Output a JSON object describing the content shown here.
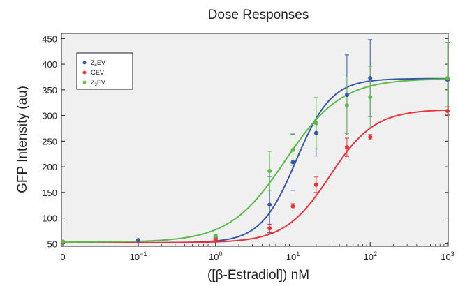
{
  "chart_data": {
    "type": "scatter",
    "title": "Dose Responses",
    "xlabel": "([β-Estradiol]) nM",
    "ylabel": "GFP Intensity (au)",
    "xscale": "log",
    "ylim": [
      45,
      460
    ],
    "yticks": [
      50,
      100,
      150,
      200,
      250,
      300,
      350,
      400,
      450
    ],
    "xticks": [
      {
        "value": 0,
        "base": "0",
        "exp": ""
      },
      {
        "value": 0.1,
        "base": "10",
        "exp": "−1"
      },
      {
        "value": 1,
        "base": "10",
        "exp": "0"
      },
      {
        "value": 10,
        "base": "10",
        "exp": "1"
      },
      {
        "value": 100,
        "base": "10",
        "exp": "2"
      },
      {
        "value": 1000,
        "base": "10",
        "exp": "3"
      }
    ],
    "grid": false,
    "legend_position": "top-left",
    "background": "#f0f0f0",
    "series": [
      {
        "name_main": "Z",
        "name_sub": "4",
        "name_tail": "EV",
        "color": "#3557a6",
        "x": [
          0,
          0.1,
          1,
          5,
          10,
          20,
          50,
          100,
          1000
        ],
        "y": [
          53,
          57,
          60,
          126,
          209,
          266,
          340,
          373,
          370
        ],
        "err": [
          2,
          2,
          3,
          55,
          55,
          45,
          78,
          75,
          2
        ],
        "fit": {
          "bottom": 52,
          "top": 372,
          "ec50": 11,
          "hill": 1.9
        }
      },
      {
        "name_main": "GEV",
        "name_sub": "",
        "name_tail": "",
        "color": "#e8333a",
        "x": [
          0,
          1,
          5,
          10,
          20,
          50,
          100,
          1000
        ],
        "y": [
          53,
          59,
          80,
          123,
          165,
          238,
          258,
          309
        ],
        "err": [
          2,
          2,
          8,
          5,
          15,
          18,
          5,
          8
        ],
        "fit": {
          "bottom": 52,
          "top": 312,
          "ec50": 30,
          "hill": 1.5
        }
      },
      {
        "name_main": "Z",
        "name_sub": "3",
        "name_tail": "EV",
        "color": "#5dbb4a",
        "x": [
          0,
          1,
          5,
          10,
          20,
          50,
          100,
          1000
        ],
        "y": [
          54,
          65,
          192,
          233,
          285,
          320,
          336,
          373
        ],
        "err": [
          2,
          3,
          38,
          30,
          50,
          55,
          60,
          70
        ],
        "fit": {
          "bottom": 53,
          "top": 372,
          "ec50": 8,
          "hill": 1.2
        }
      }
    ]
  }
}
